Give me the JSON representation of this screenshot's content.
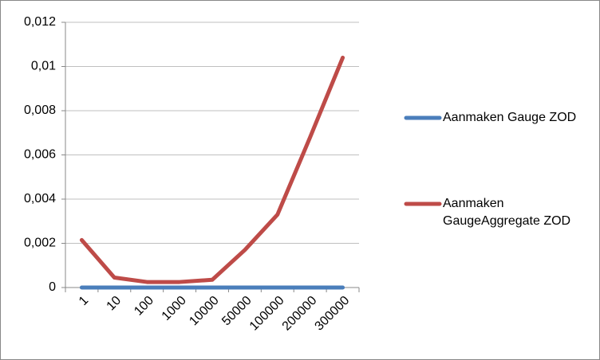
{
  "chart_data": {
    "type": "line",
    "categories": [
      "1",
      "10",
      "100",
      "1000",
      "10000",
      "50000",
      "100000",
      "200000",
      "300000"
    ],
    "series": [
      {
        "name": "Aanmaken Gauge ZOD",
        "color": "#4a7ebb",
        "values": [
          0,
          0,
          0,
          0,
          0,
          0,
          0,
          0,
          0
        ]
      },
      {
        "name": "Aanmaken GaugeAggregate ZOD",
        "color": "#be4b48",
        "values": [
          0.00215,
          0.00045,
          0.00025,
          0.00025,
          0.00035,
          0.0017,
          0.0033,
          0.0068,
          0.0104
        ]
      }
    ],
    "ylim": [
      0,
      0.012
    ],
    "yticks": [
      0,
      {
        "value": 0.002,
        "label": "0,002"
      },
      {
        "value": 0.004,
        "label": "0,004"
      },
      {
        "value": 0.006,
        "label": "0,006"
      },
      {
        "value": 0.008,
        "label": "0,008"
      },
      {
        "value": 0.01,
        "label": "0,01"
      },
      {
        "value": 0.012,
        "label": "0,012"
      }
    ],
    "grid": true,
    "legend": "right"
  }
}
